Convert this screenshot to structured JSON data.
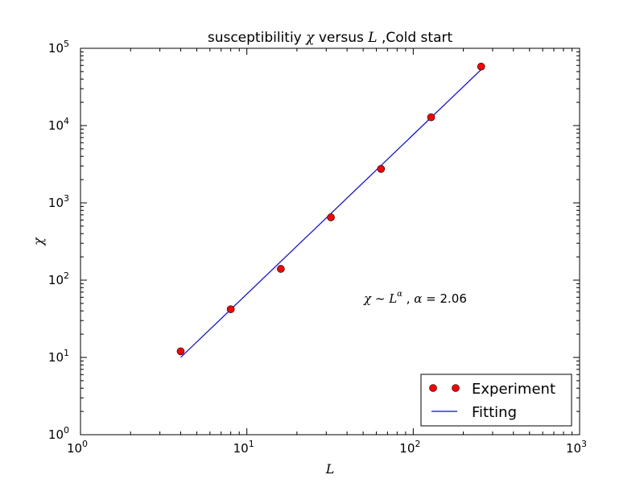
{
  "chart_data": {
    "type": "scatter",
    "title": {
      "prefix": "susceptibilitiy ",
      "chi": "χ",
      "middle": " versus ",
      "L": "L",
      "suffix": " ,Cold start"
    },
    "xlabel": "L",
    "ylabel": "χ",
    "xscale": "log",
    "yscale": "log",
    "xlim": [
      1,
      1000
    ],
    "ylim": [
      1,
      100000
    ],
    "grid": false,
    "x_ticks": [
      {
        "value": 1,
        "base": "10",
        "exp": "0"
      },
      {
        "value": 10,
        "base": "10",
        "exp": "1"
      },
      {
        "value": 100,
        "base": "10",
        "exp": "2"
      },
      {
        "value": 1000,
        "base": "10",
        "exp": "3"
      }
    ],
    "y_ticks": [
      {
        "value": 1,
        "base": "10",
        "exp": "0"
      },
      {
        "value": 10,
        "base": "10",
        "exp": "1"
      },
      {
        "value": 100,
        "base": "10",
        "exp": "2"
      },
      {
        "value": 1000,
        "base": "10",
        "exp": "3"
      },
      {
        "value": 10000,
        "base": "10",
        "exp": "4"
      },
      {
        "value": 100000,
        "base": "10",
        "exp": "5"
      }
    ],
    "series": [
      {
        "name": "Experiment",
        "kind": "scatter",
        "color": "#ff0000",
        "x": [
          4,
          8,
          16,
          32,
          64,
          128,
          256
        ],
        "y": [
          12,
          42,
          140,
          650,
          2750,
          12800,
          58000
        ]
      },
      {
        "name": "Fitting",
        "kind": "line",
        "color": "#0000ff",
        "x": [
          4,
          256
        ],
        "y": [
          10,
          53000
        ]
      }
    ],
    "legend_position": "bottom-right",
    "annotation": {
      "chi": "χ",
      "tilde": " ~ ",
      "L": "L",
      "alpha_sup": "α",
      "sep": " , ",
      "alpha": "α",
      "rest": " = 2.06"
    }
  }
}
